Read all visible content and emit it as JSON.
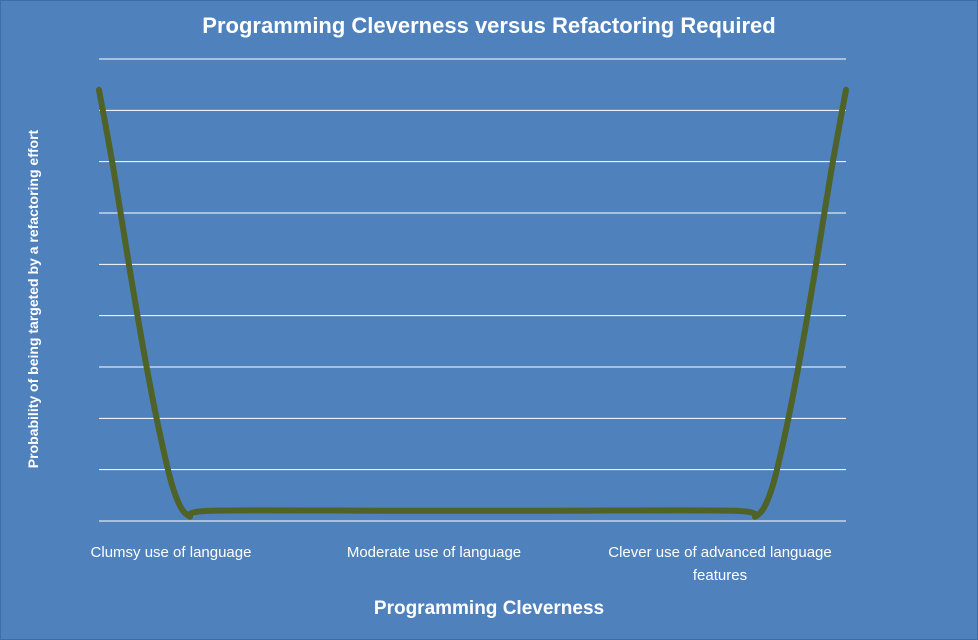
{
  "chart_data": {
    "type": "line",
    "title": "Programming Cleverness versus Refactoring Required",
    "xlabel": "Programming Cleverness",
    "ylabel": "Probability of being targeted by a refactoring effort",
    "categories": [
      "Clumsy use of language",
      "Moderate use of language",
      "Clever use of advanced language features"
    ],
    "grid": true,
    "legend": "none",
    "ylim": [
      0,
      9
    ],
    "series": [
      {
        "color": "#4f6228",
        "points": [
          {
            "x": 0.0,
            "y": 8.4
          },
          {
            "x": 0.02,
            "y": 6.8
          },
          {
            "x": 0.04,
            "y": 5.0
          },
          {
            "x": 0.06,
            "y": 3.3
          },
          {
            "x": 0.08,
            "y": 1.8
          },
          {
            "x": 0.1,
            "y": 0.6
          },
          {
            "x": 0.12,
            "y": 0.1
          },
          {
            "x": 0.15,
            "y": 0.2
          },
          {
            "x": 0.4,
            "y": 0.2
          },
          {
            "x": 0.6,
            "y": 0.2
          },
          {
            "x": 0.85,
            "y": 0.2
          },
          {
            "x": 0.88,
            "y": 0.1
          },
          {
            "x": 0.9,
            "y": 0.6
          },
          {
            "x": 0.92,
            "y": 1.8
          },
          {
            "x": 0.94,
            "y": 3.3
          },
          {
            "x": 0.96,
            "y": 5.0
          },
          {
            "x": 0.98,
            "y": 6.8
          },
          {
            "x": 1.0,
            "y": 8.4
          }
        ]
      }
    ]
  },
  "colors": {
    "background": "#4f81bd",
    "gridline": "#ffffff",
    "series": "#4f6228",
    "text": "#ffffff"
  }
}
